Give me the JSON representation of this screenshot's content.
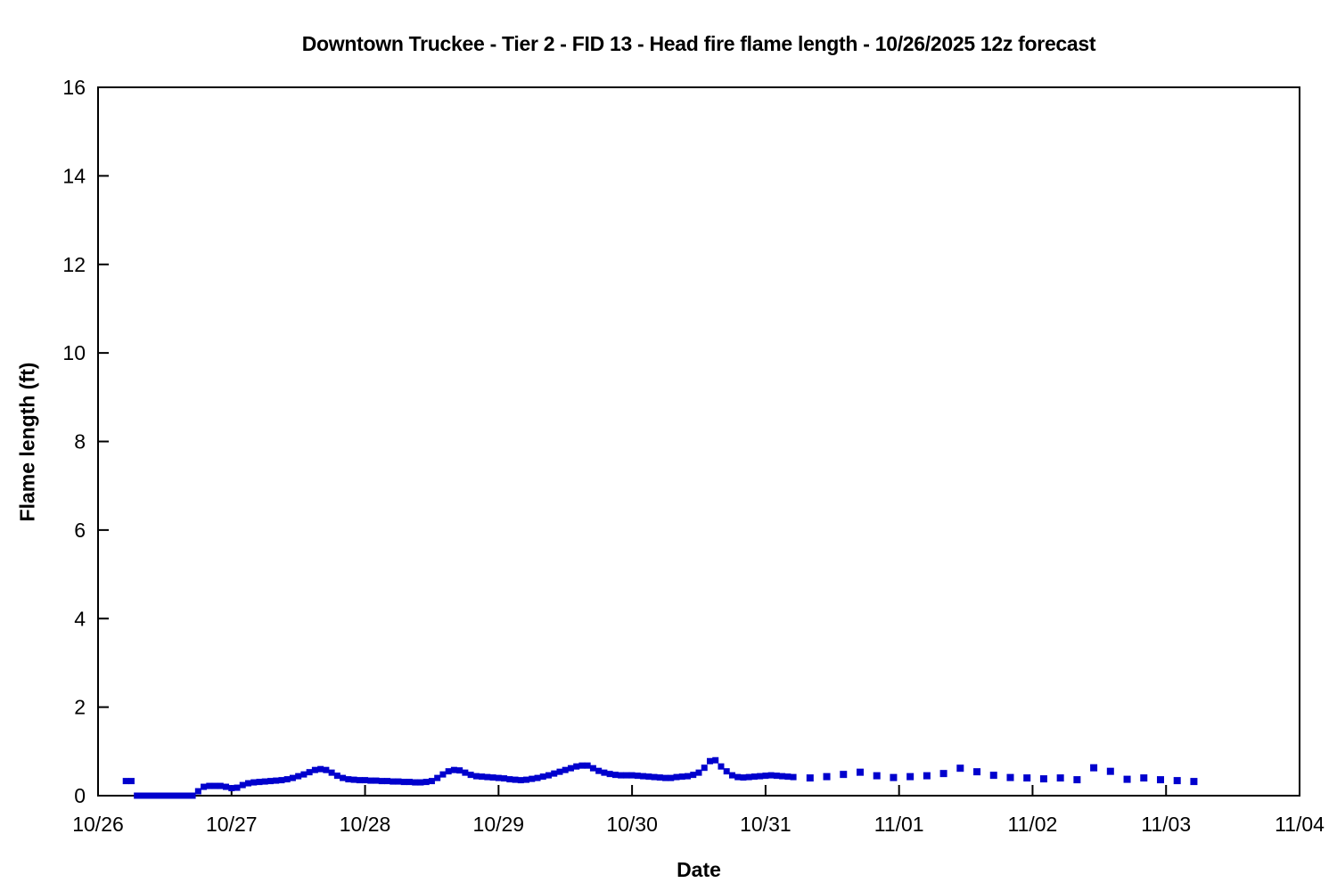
{
  "chart_data": {
    "type": "scatter",
    "title": "Downtown Truckee - Tier 2 - FID 13 - Head fire flame length - 10/26/2025 12z forecast",
    "xlabel": "Date",
    "ylabel": "Flame length (ft)",
    "x_tick_labels": [
      "10/26",
      "10/27",
      "10/28",
      "10/29",
      "10/30",
      "10/31",
      "11/01",
      "11/02",
      "11/03",
      "11/04"
    ],
    "yticks": [
      0,
      2,
      4,
      6,
      8,
      10,
      12,
      14,
      16
    ],
    "ylim": [
      0,
      16
    ],
    "x_axis_unit": "hours_since_10/26_00z",
    "grid": false,
    "legend": "none",
    "marker_color": "#0000CD",
    "marker_shape": "square",
    "axis_color": "#000000",
    "background_color": "#ffffff",
    "series": [
      {
        "name": "hourly_dense",
        "marker_size": 7,
        "points": [
          [
            5,
            0.33
          ],
          [
            6,
            0.33
          ],
          [
            7,
            0
          ],
          [
            8,
            0
          ],
          [
            9,
            0
          ],
          [
            10,
            0
          ],
          [
            11,
            0
          ],
          [
            12,
            0
          ],
          [
            13,
            0
          ],
          [
            14,
            0
          ],
          [
            15,
            0
          ],
          [
            16,
            0
          ],
          [
            17,
            0
          ],
          [
            18,
            0.1
          ],
          [
            19,
            0.2
          ],
          [
            20,
            0.22
          ],
          [
            21,
            0.22
          ],
          [
            22,
            0.22
          ],
          [
            23,
            0.2
          ],
          [
            24,
            0.17
          ],
          [
            25,
            0.18
          ],
          [
            26,
            0.24
          ],
          [
            27,
            0.28
          ],
          [
            28,
            0.3
          ],
          [
            29,
            0.31
          ],
          [
            30,
            0.32
          ],
          [
            31,
            0.33
          ],
          [
            32,
            0.34
          ],
          [
            33,
            0.35
          ],
          [
            34,
            0.37
          ],
          [
            35,
            0.4
          ],
          [
            36,
            0.44
          ],
          [
            37,
            0.48
          ],
          [
            38,
            0.53
          ],
          [
            39,
            0.58
          ],
          [
            40,
            0.6
          ],
          [
            41,
            0.58
          ],
          [
            42,
            0.52
          ],
          [
            43,
            0.45
          ],
          [
            44,
            0.4
          ],
          [
            45,
            0.37
          ],
          [
            46,
            0.36
          ],
          [
            47,
            0.35
          ],
          [
            48,
            0.35
          ],
          [
            49,
            0.34
          ],
          [
            50,
            0.34
          ],
          [
            51,
            0.33
          ],
          [
            52,
            0.33
          ],
          [
            53,
            0.32
          ],
          [
            54,
            0.32
          ],
          [
            55,
            0.31
          ],
          [
            56,
            0.31
          ],
          [
            57,
            0.3
          ],
          [
            58,
            0.3
          ],
          [
            59,
            0.31
          ],
          [
            60,
            0.33
          ],
          [
            61,
            0.4
          ],
          [
            62,
            0.48
          ],
          [
            63,
            0.55
          ],
          [
            64,
            0.58
          ],
          [
            65,
            0.57
          ],
          [
            66,
            0.52
          ],
          [
            67,
            0.47
          ],
          [
            68,
            0.44
          ],
          [
            69,
            0.43
          ],
          [
            70,
            0.42
          ],
          [
            71,
            0.41
          ],
          [
            72,
            0.4
          ],
          [
            73,
            0.39
          ],
          [
            74,
            0.37
          ],
          [
            75,
            0.36
          ],
          [
            76,
            0.35
          ],
          [
            77,
            0.36
          ],
          [
            78,
            0.38
          ],
          [
            79,
            0.4
          ],
          [
            80,
            0.43
          ],
          [
            81,
            0.46
          ],
          [
            82,
            0.5
          ],
          [
            83,
            0.54
          ],
          [
            84,
            0.58
          ],
          [
            85,
            0.62
          ],
          [
            86,
            0.66
          ],
          [
            87,
            0.68
          ],
          [
            88,
            0.68
          ],
          [
            89,
            0.62
          ],
          [
            90,
            0.56
          ],
          [
            91,
            0.52
          ],
          [
            92,
            0.49
          ],
          [
            93,
            0.47
          ],
          [
            94,
            0.46
          ],
          [
            95,
            0.46
          ],
          [
            96,
            0.46
          ],
          [
            97,
            0.45
          ],
          [
            98,
            0.44
          ],
          [
            99,
            0.43
          ],
          [
            100,
            0.42
          ],
          [
            101,
            0.41
          ],
          [
            102,
            0.4
          ],
          [
            103,
            0.4
          ],
          [
            104,
            0.42
          ],
          [
            105,
            0.43
          ],
          [
            106,
            0.44
          ],
          [
            107,
            0.47
          ],
          [
            108,
            0.52
          ],
          [
            109,
            0.63
          ],
          [
            110,
            0.78
          ],
          [
            111,
            0.8
          ],
          [
            112,
            0.66
          ],
          [
            113,
            0.55
          ],
          [
            114,
            0.46
          ],
          [
            115,
            0.42
          ],
          [
            116,
            0.41
          ],
          [
            117,
            0.42
          ],
          [
            118,
            0.43
          ],
          [
            119,
            0.44
          ],
          [
            120,
            0.45
          ],
          [
            121,
            0.46
          ],
          [
            122,
            0.45
          ],
          [
            123,
            0.44
          ],
          [
            124,
            0.43
          ],
          [
            125,
            0.42
          ]
        ]
      },
      {
        "name": "three_hourly_sparse",
        "marker_size": 8,
        "points": [
          [
            128,
            0.4
          ],
          [
            131,
            0.43
          ],
          [
            134,
            0.48
          ],
          [
            137,
            0.53
          ],
          [
            140,
            0.45
          ],
          [
            143,
            0.41
          ],
          [
            146,
            0.43
          ],
          [
            149,
            0.45
          ],
          [
            152,
            0.5
          ],
          [
            155,
            0.62
          ],
          [
            158,
            0.54
          ],
          [
            161,
            0.46
          ],
          [
            164,
            0.41
          ],
          [
            167,
            0.4
          ],
          [
            170,
            0.38
          ],
          [
            173,
            0.4
          ],
          [
            176,
            0.36
          ],
          [
            179,
            0.63
          ],
          [
            182,
            0.55
          ],
          [
            185,
            0.37
          ],
          [
            188,
            0.4
          ],
          [
            191,
            0.36
          ],
          [
            194,
            0.34
          ],
          [
            197,
            0.32
          ]
        ]
      }
    ]
  }
}
